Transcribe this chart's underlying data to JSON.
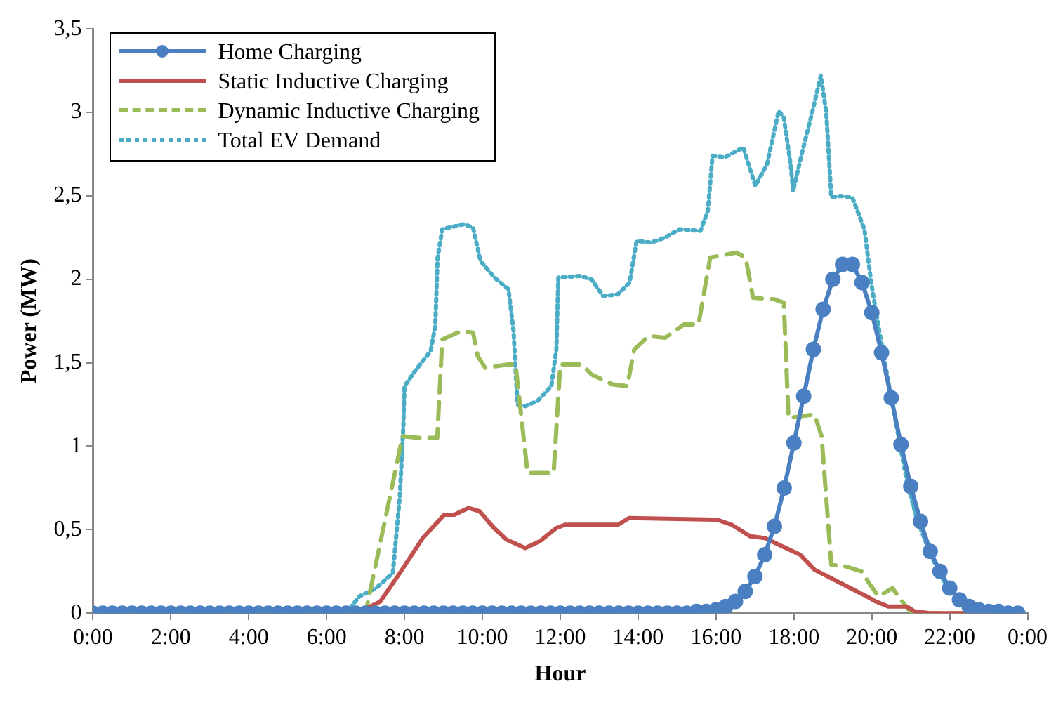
{
  "chart_data": {
    "type": "line",
    "xlabel": "Hour",
    "ylabel": "Power (MW)",
    "x": [
      0,
      0.25,
      0.5,
      0.75,
      1,
      1.25,
      1.5,
      1.75,
      2,
      2.25,
      2.5,
      2.75,
      3,
      3.25,
      3.5,
      3.75,
      4,
      4.25,
      4.5,
      4.75,
      5,
      5.25,
      5.5,
      5.75,
      6,
      6.25,
      6.5,
      6.75,
      7,
      7.25,
      7.5,
      7.75,
      8,
      8.25,
      8.5,
      8.75,
      9,
      9.25,
      9.5,
      9.75,
      10,
      10.25,
      10.5,
      10.75,
      11,
      11.25,
      11.5,
      11.75,
      12,
      12.25,
      12.5,
      12.75,
      13,
      13.25,
      13.5,
      13.75,
      14,
      14.25,
      14.5,
      14.75,
      15,
      15.25,
      15.5,
      15.75,
      16,
      16.25,
      16.5,
      16.75,
      17,
      17.25,
      17.5,
      17.75,
      18,
      18.25,
      18.5,
      18.75,
      19,
      19.25,
      19.5,
      19.75,
      20,
      20.25,
      20.5,
      20.75,
      21,
      21.25,
      21.5,
      21.75,
      22,
      22.25,
      22.5,
      22.75,
      23,
      23.25,
      23.5,
      23.75
    ],
    "series": [
      {
        "name": "Home Charging",
        "color": "#4a7fc1",
        "marker": "circle",
        "line_style": "solid",
        "values": [
          0,
          0,
          0,
          0,
          0,
          0,
          0,
          0,
          0,
          0,
          0,
          0,
          0,
          0,
          0,
          0,
          0,
          0,
          0,
          0,
          0,
          0,
          0,
          0,
          0,
          0,
          0,
          0,
          0,
          0,
          0,
          0,
          0,
          0,
          0,
          0,
          0,
          0,
          0,
          0,
          0,
          0,
          0,
          0,
          0,
          0,
          0,
          0,
          0,
          0,
          0,
          0,
          0,
          0,
          0,
          0,
          0,
          0,
          0,
          0,
          0,
          0,
          0.01,
          0.01,
          0.02,
          0.04,
          0.07,
          0.13,
          0.22,
          0.35,
          0.52,
          0.75,
          1.02,
          1.3,
          1.58,
          1.82,
          2.0,
          2.09,
          2.09,
          1.98,
          1.8,
          1.56,
          1.29,
          1.01,
          0.76,
          0.55,
          0.37,
          0.25,
          0.15,
          0.08,
          0.04,
          0.02,
          0.01,
          0.01,
          0,
          0
        ]
      },
      {
        "name": "Static Inductive Charging",
        "color": "#c0504d",
        "marker": "none",
        "line_style": "solid",
        "x": [
          0,
          6.78,
          7.38,
          7.88,
          8.47,
          9.02,
          9.28,
          9.64,
          9.93,
          10.3,
          10.62,
          11.1,
          11.47,
          11.9,
          12.12,
          13.48,
          13.77,
          16.03,
          16.4,
          16.88,
          17.25,
          18.16,
          18.53,
          19.45,
          19.87,
          20.1,
          20.42,
          20.9,
          21.1,
          21.5,
          23.8
        ],
        "values": [
          0,
          0,
          0.07,
          0.24,
          0.45,
          0.59,
          0.59,
          0.63,
          0.61,
          0.51,
          0.44,
          0.39,
          0.43,
          0.51,
          0.53,
          0.53,
          0.57,
          0.56,
          0.53,
          0.46,
          0.45,
          0.35,
          0.26,
          0.15,
          0.1,
          0.07,
          0.04,
          0.04,
          0.01,
          0,
          0
        ]
      },
      {
        "name": "Dynamic Inductive Charging",
        "color": "#9bbb59",
        "marker": "none",
        "line_style": "dashed",
        "x": [
          0,
          7.0,
          7.95,
          8.36,
          8.84,
          8.97,
          9.46,
          9.76,
          9.88,
          10.07,
          10.67,
          10.85,
          11.16,
          11.53,
          11.83,
          12.0,
          12.56,
          12.8,
          13.35,
          13.72,
          13.9,
          14.27,
          14.69,
          15.18,
          15.55,
          15.85,
          16.52,
          16.76,
          16.95,
          17.5,
          17.74,
          17.86,
          18.53,
          18.71,
          18.96,
          19.32,
          19.74,
          19.93,
          20.17,
          20.53,
          20.78,
          21.02,
          23.8
        ],
        "values": [
          0,
          0,
          1.06,
          1.05,
          1.05,
          1.64,
          1.69,
          1.68,
          1.54,
          1.47,
          1.49,
          1.49,
          0.84,
          0.84,
          0.84,
          1.49,
          1.49,
          1.43,
          1.37,
          1.36,
          1.58,
          1.66,
          1.65,
          1.73,
          1.73,
          2.13,
          2.16,
          2.13,
          1.89,
          1.88,
          1.86,
          1.17,
          1.19,
          1.06,
          0.29,
          0.28,
          0.25,
          0.18,
          0.1,
          0.15,
          0.07,
          0,
          0
        ]
      },
      {
        "name": "Total EV Demand",
        "color": "#4bacc6",
        "marker": "none",
        "line_style": "dotted",
        "x": [
          0,
          6.5,
          6.84,
          7.27,
          7.7,
          7.88,
          7.97,
          8.0,
          8.3,
          8.67,
          8.79,
          8.85,
          8.97,
          9.52,
          9.76,
          9.95,
          10.31,
          10.67,
          10.8,
          10.9,
          11.1,
          11.41,
          11.77,
          11.9,
          11.95,
          12.5,
          12.8,
          13.1,
          13.48,
          13.78,
          13.96,
          14.33,
          14.69,
          15.06,
          15.6,
          15.79,
          15.91,
          16.22,
          16.7,
          17.01,
          17.31,
          17.61,
          17.74,
          17.92,
          17.98,
          18.22,
          18.47,
          18.69,
          18.83,
          18.96,
          19.2,
          19.5,
          19.81,
          19.99,
          20.17,
          20.42,
          20.66,
          20.9,
          21.15,
          21.51,
          21.88,
          22.36,
          22.8,
          23.8
        ],
        "values": [
          0,
          0,
          0.1,
          0.15,
          0.24,
          0.7,
          1.12,
          1.36,
          1.46,
          1.57,
          1.72,
          2.13,
          2.3,
          2.33,
          2.31,
          2.11,
          2.01,
          1.94,
          1.69,
          1.25,
          1.24,
          1.27,
          1.36,
          1.58,
          2.01,
          2.02,
          2.0,
          1.9,
          1.91,
          1.98,
          2.23,
          2.22,
          2.25,
          2.3,
          2.29,
          2.41,
          2.74,
          2.73,
          2.79,
          2.56,
          2.69,
          3.01,
          2.97,
          2.68,
          2.53,
          2.77,
          3.0,
          3.22,
          3.0,
          2.49,
          2.5,
          2.49,
          2.3,
          1.97,
          1.72,
          1.39,
          1.09,
          0.79,
          0.57,
          0.35,
          0.18,
          0.07,
          0.03,
          0.01
        ]
      }
    ],
    "xlim": [
      0,
      24
    ],
    "xticks": [
      {
        "value": 0,
        "label": "0:00"
      },
      {
        "value": 2,
        "label": "2:00"
      },
      {
        "value": 4,
        "label": "4:00"
      },
      {
        "value": 6,
        "label": "6:00"
      },
      {
        "value": 8,
        "label": "8:00"
      },
      {
        "value": 10,
        "label": "10:00"
      },
      {
        "value": 12,
        "label": "12:00"
      },
      {
        "value": 14,
        "label": "14:00"
      },
      {
        "value": 16,
        "label": "16:00"
      },
      {
        "value": 18,
        "label": "18:00"
      },
      {
        "value": 20,
        "label": "20:00"
      },
      {
        "value": 22,
        "label": "22:00"
      },
      {
        "value": 24,
        "label": "0:00"
      }
    ],
    "ylim": [
      0,
      3.5
    ],
    "yticks": [
      0,
      {
        "value": 0.5,
        "label": "0,5"
      },
      1,
      {
        "value": 1.5,
        "label": "1,5"
      },
      2,
      {
        "value": 2.5,
        "label": "2,5"
      },
      3,
      {
        "value": 3.5,
        "label": "3,5"
      }
    ],
    "grid": false,
    "legend": "top left"
  }
}
